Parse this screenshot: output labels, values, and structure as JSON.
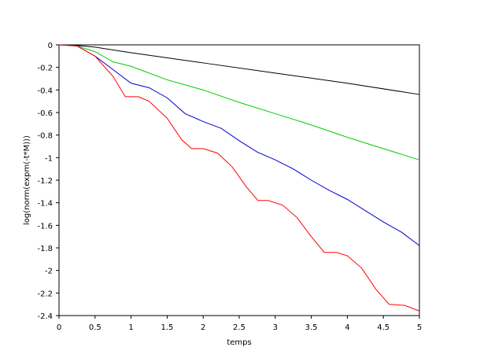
{
  "chart_data": {
    "type": "line",
    "xlabel": "temps",
    "ylabel": "log(norm(expm(-t*M)))",
    "xlim": [
      0,
      5
    ],
    "ylim": [
      -2.4,
      0
    ],
    "xticks": [
      0,
      0.5,
      1,
      1.5,
      2,
      2.5,
      3,
      3.5,
      4,
      4.5,
      5
    ],
    "yticks": [
      0,
      -0.2,
      -0.4,
      -0.6,
      -0.8,
      -1,
      -1.2,
      -1.4,
      -1.6,
      -1.8,
      -2,
      -2.2,
      -2.4
    ],
    "series": [
      {
        "color": "#000000",
        "x": [
          0,
          0.25,
          0.5,
          1,
          2,
          3,
          4,
          5
        ],
        "values": [
          0,
          -0.005,
          -0.02,
          -0.07,
          -0.16,
          -0.25,
          -0.34,
          -0.44
        ]
      },
      {
        "color": "#00cc00",
        "x": [
          0,
          0.25,
          0.5,
          0.75,
          1,
          1.5,
          2,
          2.5,
          3,
          3.5,
          4,
          4.5,
          5
        ],
        "values": [
          0,
          -0.01,
          -0.06,
          -0.15,
          -0.19,
          -0.31,
          -0.4,
          -0.51,
          -0.61,
          -0.71,
          -0.82,
          -0.92,
          -1.02
        ]
      },
      {
        "color": "#0000cc",
        "x": [
          0,
          0.25,
          0.5,
          0.75,
          1,
          1.25,
          1.5,
          1.75,
          2,
          2.25,
          2.5,
          2.75,
          3,
          3.25,
          3.5,
          3.75,
          4,
          4.25,
          4.5,
          4.75,
          5
        ],
        "values": [
          0,
          -0.01,
          -0.1,
          -0.22,
          -0.34,
          -0.38,
          -0.47,
          -0.61,
          -0.68,
          -0.74,
          -0.85,
          -0.95,
          -1.02,
          -1.1,
          -1.2,
          -1.29,
          -1.37,
          -1.47,
          -1.57,
          -1.66,
          -1.78
        ]
      },
      {
        "color": "#ff0000",
        "x": [
          0,
          0.25,
          0.5,
          0.75,
          0.92,
          1.1,
          1.25,
          1.5,
          1.7,
          1.84,
          2,
          2.2,
          2.4,
          2.6,
          2.76,
          2.9,
          3.1,
          3.3,
          3.5,
          3.68,
          3.85,
          4,
          4.2,
          4.4,
          4.58,
          4.8,
          5
        ],
        "values": [
          0,
          -0.01,
          -0.1,
          -0.28,
          -0.46,
          -0.46,
          -0.5,
          -0.65,
          -0.84,
          -0.92,
          -0.92,
          -0.96,
          -1.08,
          -1.26,
          -1.38,
          -1.38,
          -1.42,
          -1.53,
          -1.7,
          -1.84,
          -1.84,
          -1.87,
          -1.98,
          -2.17,
          -2.3,
          -2.31,
          -2.36
        ]
      }
    ]
  }
}
